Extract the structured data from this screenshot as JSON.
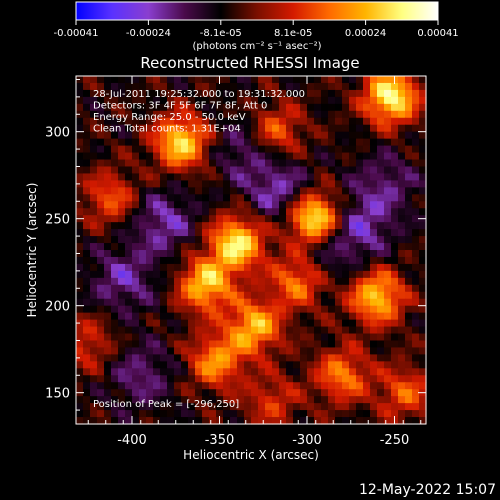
{
  "colorbar": {
    "ticks": [
      "-0.00041",
      "-0.00024",
      "-8.1e-05",
      "8.1e-05",
      "0.00024",
      "0.00041"
    ],
    "units_label": "(photons cm⁻² s⁻¹ asec⁻²)",
    "stops": [
      "#0000ff",
      "#5a32ff",
      "#8a3ecf",
      "#4a0a4a",
      "#000000",
      "#7a0f00",
      "#d41a00",
      "#ff6a00",
      "#ffb400",
      "#ffff80",
      "#ffffff"
    ]
  },
  "chart_data": {
    "type": "heatmap",
    "title": "Reconstructed RHESSI Image",
    "xlabel": "Heliocentric X (arcsec)",
    "ylabel": "Heliocentric Y (arcsec)",
    "xlim": [
      -432,
      -232
    ],
    "ylim": [
      132,
      332
    ],
    "xticks": [
      -400,
      -350,
      -300,
      -250
    ],
    "yticks": [
      150,
      200,
      250,
      300
    ],
    "info_lines": [
      "28-Jul-2011 19:25:32.000 to 19:31:32.000",
      "Detectors: 3F 4F 5F 6F 7F 8F, Att 0",
      "Energy Range: 25.0 - 50.0 keV",
      "Clean    Total counts: 1.31E+04"
    ],
    "peak_label": "Position of Peak = [-296,250]",
    "peak_x": -296,
    "peak_y": 250,
    "sources": [
      {
        "x": -296,
        "y": 250,
        "intensity": 1.0
      },
      {
        "x": -340,
        "y": 236,
        "intensity": 0.85
      },
      {
        "x": -252,
        "y": 320,
        "intensity": 0.9
      },
      {
        "x": -372,
        "y": 294,
        "intensity": 0.8
      },
      {
        "x": -358,
        "y": 212,
        "intensity": 0.75
      },
      {
        "x": -330,
        "y": 188,
        "intensity": 0.7
      },
      {
        "x": -260,
        "y": 205,
        "intensity": 0.75
      },
      {
        "x": -305,
        "y": 215,
        "intensity": 0.6
      },
      {
        "x": -318,
        "y": 300,
        "intensity": 0.5
      },
      {
        "x": -412,
        "y": 262,
        "intensity": 0.45
      },
      {
        "x": -352,
        "y": 168,
        "intensity": 0.6
      },
      {
        "x": -280,
        "y": 160,
        "intensity": 0.55
      },
      {
        "x": -244,
        "y": 150,
        "intensity": 0.45
      },
      {
        "x": -425,
        "y": 178,
        "intensity": 0.35
      },
      {
        "x": -320,
        "y": 145,
        "intensity": 0.35
      }
    ],
    "negative_regions": [
      {
        "x": -382,
        "y": 248,
        "intensity": 0.7
      },
      {
        "x": -315,
        "y": 265,
        "intensity": 0.75
      },
      {
        "x": -270,
        "y": 245,
        "intensity": 0.7
      },
      {
        "x": -405,
        "y": 215,
        "intensity": 0.65
      },
      {
        "x": -335,
        "y": 290,
        "intensity": 0.55
      },
      {
        "x": -292,
        "y": 230,
        "intensity": 0.5
      },
      {
        "x": -395,
        "y": 160,
        "intensity": 0.55
      },
      {
        "x": -255,
        "y": 270,
        "intensity": 0.5
      }
    ]
  },
  "footer": {
    "date": "12-May-2022 15:07"
  }
}
